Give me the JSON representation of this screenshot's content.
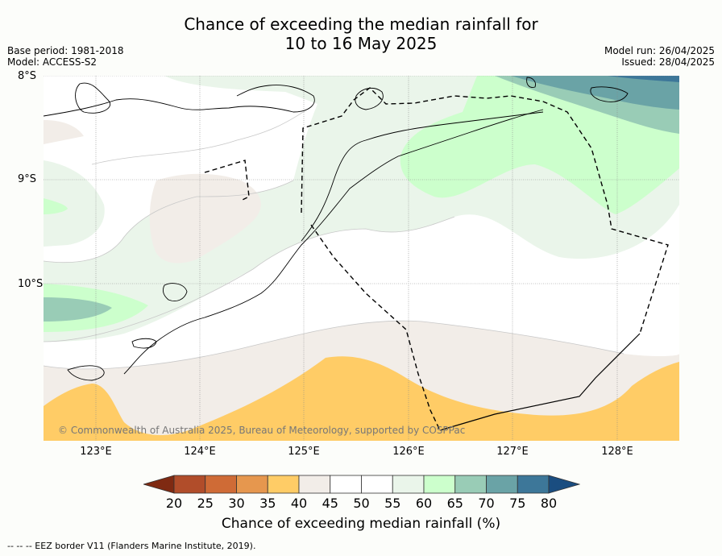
{
  "title": "Chance of exceeding the median rainfall for",
  "subtitle": "10 to 16 May 2025",
  "base_period": "Base period: 1981-2018",
  "model": "Model: ACCESS-S2",
  "model_run": "Model run: 26/04/2025",
  "issued": "Issued: 28/04/2025",
  "lat_labels": [
    "8°S",
    "9°S",
    "10°S"
  ],
  "lon_labels": [
    "123°E",
    "124°E",
    "125°E",
    "126°E",
    "127°E",
    "128°E"
  ],
  "colorbar": {
    "label": "Chance of exceeding median rainfall (%)",
    "ticks": [
      "20",
      "25",
      "30",
      "35",
      "40",
      "45",
      "50",
      "55",
      "60",
      "65",
      "70",
      "75",
      "80"
    ],
    "colors": [
      "#7f2a12",
      "#b14d2a",
      "#cf6b36",
      "#e6974e",
      "#ffcc66",
      "#f2ede8",
      "#ffffff",
      "#ffffff",
      "#eaf5ea",
      "#ccffcc",
      "#99ccb6",
      "#6aa3a6",
      "#3d7799",
      "#1a4d80"
    ]
  },
  "credit": "© Commonwealth of Australia 2025, Bureau of Meteorology, supported by COSPPac",
  "footnote": "--  --  -- EEZ border V11 (Flanders Marine Institute, 2019)."
}
